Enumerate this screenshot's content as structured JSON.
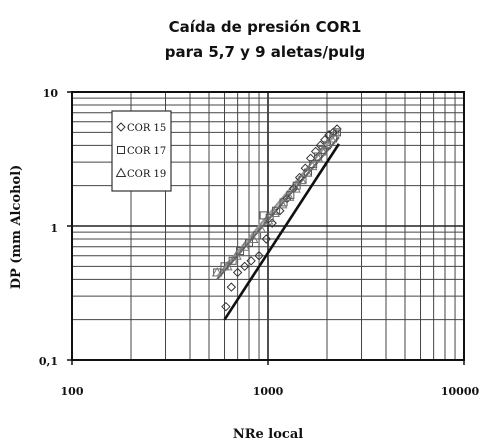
{
  "chart_data": {
    "type": "scatter",
    "title": [
      "Caída de presión COR1",
      "para 5,7 y 9 aletas/pulg"
    ],
    "xlabel": "NRe local",
    "ylabel": "DP (mm Alcohol)",
    "x_scale": "log",
    "y_scale": "log",
    "xlim": [
      100,
      10000
    ],
    "ylim": [
      0.1,
      10
    ],
    "x_ticks": [
      100,
      1000,
      10000
    ],
    "x_tick_labels": [
      "100",
      "1000",
      "10000"
    ],
    "y_ticks": [
      0.1,
      1,
      10
    ],
    "y_tick_labels": [
      "0,1",
      "1",
      "10"
    ],
    "grid": true,
    "legend_position": "top-left",
    "series": [
      {
        "name": "COR 15",
        "marker": "diamond",
        "color": "#333333",
        "x": [
          610,
          650,
          700,
          760,
          820,
          900,
          980,
          1050,
          1150,
          1250,
          1350,
          1450,
          1550,
          1650,
          1750,
          1850,
          1950,
          2050,
          2150,
          2250
        ],
        "y": [
          0.25,
          0.35,
          0.45,
          0.5,
          0.55,
          0.6,
          0.8,
          1.05,
          1.3,
          1.6,
          1.9,
          2.3,
          2.7,
          3.2,
          3.6,
          4.0,
          4.4,
          4.8,
          5.0,
          5.3
        ],
        "fit": {
          "x": [
            600,
            2300
          ],
          "y": [
            0.2,
            4.1
          ]
        }
      },
      {
        "name": "COR 17",
        "marker": "square",
        "color": "#555555",
        "x": [
          550,
          600,
          660,
          720,
          800,
          880,
          950,
          1020,
          1100,
          1200,
          1300,
          1400,
          1500,
          1600,
          1700,
          1800,
          1900,
          2000,
          2150,
          2250
        ],
        "y": [
          0.45,
          0.5,
          0.55,
          0.65,
          0.75,
          0.85,
          1.2,
          1.15,
          1.3,
          1.5,
          1.7,
          2.0,
          2.2,
          2.5,
          2.9,
          3.3,
          3.7,
          4.0,
          4.5,
          5.0
        ],
        "fit": {
          "x": [
            550,
            2300
          ],
          "y": [
            0.4,
            4.6
          ]
        }
      },
      {
        "name": "COR 19",
        "marker": "triangle",
        "color": "#777777",
        "x": [
          550,
          620,
          690,
          760,
          840,
          920,
          1000,
          1080,
          1180,
          1280,
          1380,
          1480,
          1580,
          1680,
          1800,
          1900,
          2000,
          2100,
          2200
        ],
        "y": [
          0.45,
          0.5,
          0.6,
          0.7,
          0.8,
          0.95,
          1.1,
          1.25,
          1.45,
          1.65,
          1.9,
          2.2,
          2.5,
          2.8,
          3.2,
          3.6,
          4.1,
          4.5,
          5.0
        ],
        "fit": {
          "x": [
            550,
            2300
          ],
          "y": [
            0.42,
            5.2
          ]
        }
      }
    ]
  }
}
